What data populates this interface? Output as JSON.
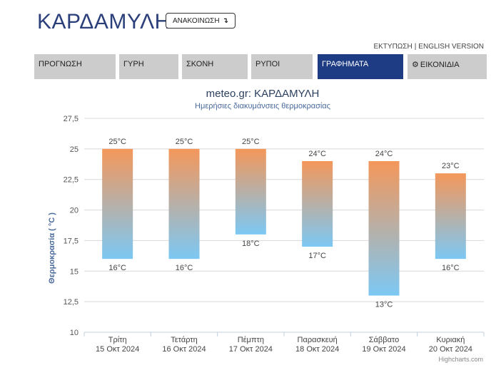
{
  "header": {
    "city": "ΚΑΡΔΑΜΥΛΗ",
    "announce_label": "ΑΝΑΚΟΙΝΩΣΗ",
    "announce_arrow": "↴",
    "print_label": "ΕΚΤΥΠΩΣΗ",
    "separator": "|",
    "english_label": "ENGLISH VERSION"
  },
  "tabs": [
    {
      "label": "ΠΡΟΓΝΩΣΗ",
      "active": false
    },
    {
      "label": "ΓΥΡΗ",
      "active": false
    },
    {
      "label": "ΣΚΟΝΗ",
      "active": false
    },
    {
      "label": "ΡΥΠΟΙ",
      "active": false
    },
    {
      "label": "ΓΡΑΦΗΜΑΤΑ",
      "active": true
    },
    {
      "label": "ΕΙΚΟΝΙΔΙΑ",
      "active": false,
      "icon": "gear-icon"
    }
  ],
  "colors": {
    "accent": "#1e3c84",
    "tab_bg": "#cccccc",
    "bar_top": "#f4975a",
    "bar_bottom": "#7cc8f4"
  },
  "chart_data": {
    "type": "bar",
    "subtype": "columnrange",
    "title": "meteo.gr: ΚΑΡΔΑΜΥΛΗ",
    "subtitle": "Ημερήσιες διακυμάνσεις θερμοκρασίας",
    "ylabel": "Θερμοκρασία ( °C )",
    "ylim": [
      10,
      27.5
    ],
    "yticks": [
      "10",
      "12,5",
      "15",
      "17,5",
      "20",
      "22,5",
      "25",
      "27,5"
    ],
    "grid": true,
    "categories": [
      {
        "day": "Τρίτη",
        "date": "15 Οκτ 2024"
      },
      {
        "day": "Τετάρτη",
        "date": "16 Οκτ 2024"
      },
      {
        "day": "Πέμπτη",
        "date": "17 Οκτ 2024"
      },
      {
        "day": "Παρασκευή",
        "date": "18 Οκτ 2024"
      },
      {
        "day": "Σάββατο",
        "date": "19 Οκτ 2024"
      },
      {
        "day": "Κυριακή",
        "date": "20 Οκτ 2024"
      }
    ],
    "low": [
      16,
      16,
      18,
      17,
      13,
      16
    ],
    "high": [
      25,
      25,
      25,
      24,
      24,
      23
    ],
    "unit": "°C",
    "credits": "Highcharts.com"
  }
}
